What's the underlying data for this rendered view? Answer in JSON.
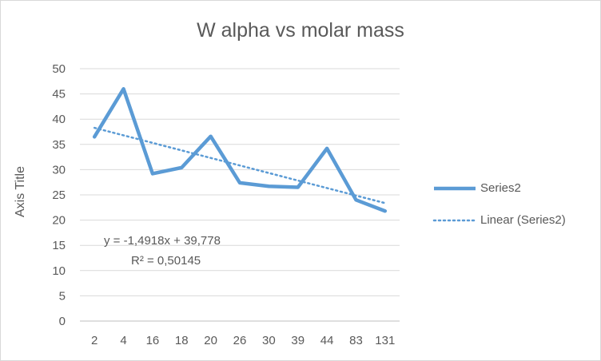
{
  "chart_data": {
    "type": "line",
    "title": "W alpha vs molar mass",
    "ylabel": "Axis Title",
    "xlabel": "",
    "categories": [
      "2",
      "4",
      "16",
      "18",
      "20",
      "26",
      "30",
      "39",
      "44",
      "83",
      "131"
    ],
    "yticks": [
      0,
      5,
      10,
      15,
      20,
      25,
      30,
      35,
      40,
      45,
      50
    ],
    "ylim": [
      0,
      50
    ],
    "grid": true,
    "legend": "right",
    "series": [
      {
        "name": "Series2",
        "values": [
          36.5,
          46.0,
          29.2,
          30.4,
          36.6,
          27.4,
          26.7,
          26.5,
          34.2,
          24.0,
          21.8
        ],
        "color": "#5b9bd5"
      }
    ],
    "trendline": {
      "name": "Linear  (Series2)",
      "slope": -1.4918,
      "intercept": 39.778,
      "equation": "y = -1,4918x + 39,778",
      "r2": "R² = 0,50145",
      "color": "#5b9bd5"
    }
  }
}
